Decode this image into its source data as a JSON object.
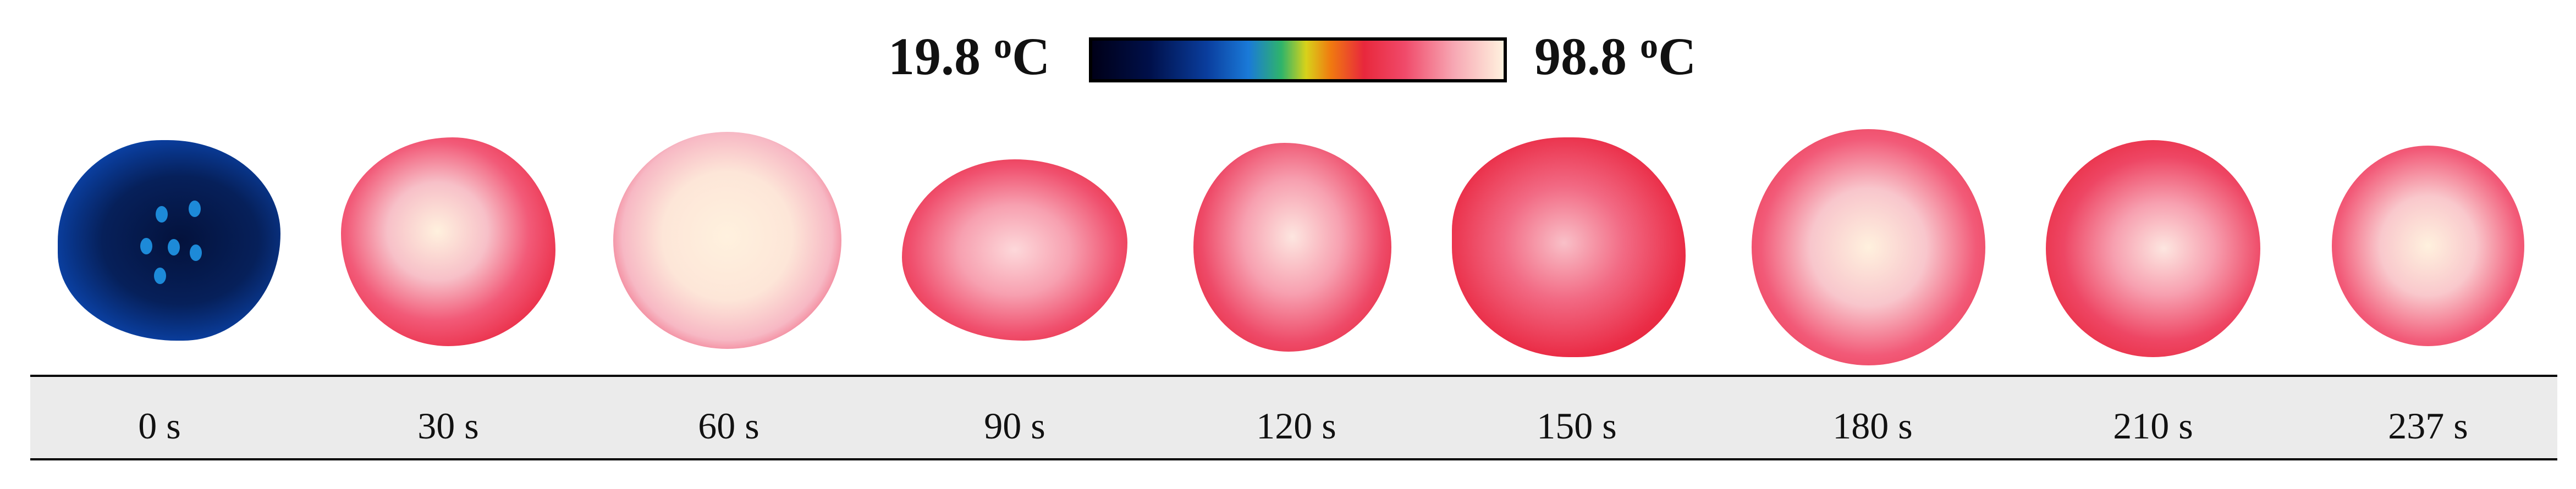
{
  "colorscale": {
    "min_value": "19.8",
    "max_value": "98.8",
    "degree_symbol": "o",
    "unit": "C"
  },
  "time_labels": [
    "0 s",
    "30 s",
    "60 s",
    "90 s",
    "120 s",
    "150 s",
    "180 s",
    "210 s",
    "237 s"
  ]
}
